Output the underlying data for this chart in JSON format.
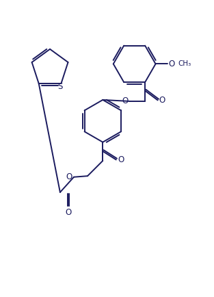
{
  "background_color": "#ffffff",
  "line_color": "#1a1a5e",
  "line_width": 1.4,
  "figsize": [
    3.13,
    4.34
  ],
  "dpi": 100,
  "xlim": [
    0,
    10
  ],
  "ylim": [
    0,
    14
  ]
}
